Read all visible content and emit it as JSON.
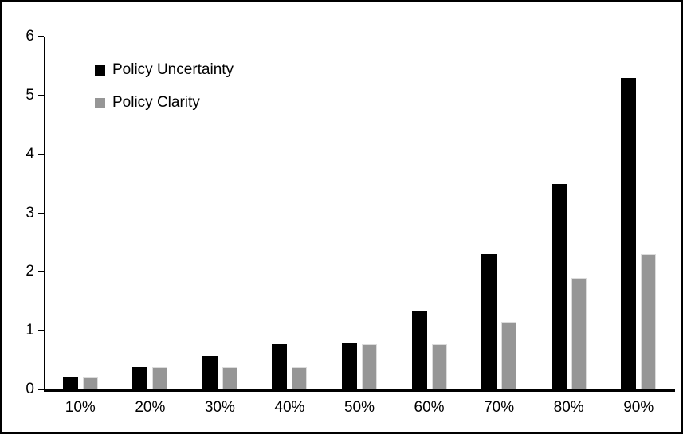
{
  "figure": {
    "background_color": "#ffffff",
    "border_color": "#000000"
  },
  "legend": {
    "position": "top-left-inside",
    "items": [
      {
        "label": "Policy Uncertainty",
        "marker": "square",
        "color": "#000000"
      },
      {
        "label": "Policy Clarity",
        "marker": "square",
        "color": "#969696"
      }
    ]
  },
  "chart_data": {
    "type": "bar",
    "title": "",
    "xlabel": "",
    "ylabel": "",
    "categories": [
      "10%",
      "20%",
      "30%",
      "40%",
      "50%",
      "60%",
      "70%",
      "80%",
      "90%"
    ],
    "series": [
      {
        "name": "Policy Uncertainty",
        "color": "#000000",
        "values": [
          0.2,
          0.38,
          0.57,
          0.77,
          0.78,
          1.33,
          2.3,
          3.5,
          5.3
        ]
      },
      {
        "name": "Policy Clarity",
        "color": "#969696",
        "values": [
          0.2,
          0.38,
          0.38,
          0.38,
          0.77,
          0.77,
          1.15,
          1.9,
          2.3
        ]
      }
    ],
    "ylim": [
      0,
      6
    ],
    "y_ticks": [
      0,
      1,
      2,
      3,
      4,
      5,
      6
    ],
    "grid": false,
    "legend_position": "top-left-inside"
  }
}
